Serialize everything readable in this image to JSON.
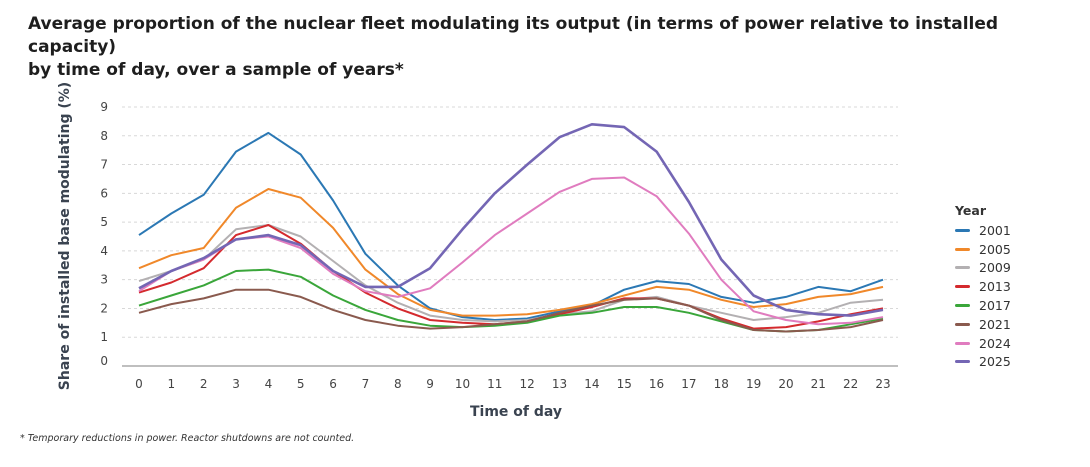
{
  "title_line1": "Average proportion of the nuclear fleet modulating its output (in terms of power relative to installed capacity)",
  "title_line2": "by time of day, over a sample of years*",
  "footnote": "* Temporary reductions in power. Reactor shutdowns are not counted.",
  "chart_data": {
    "type": "line",
    "xlabel": "Time of day",
    "ylabel": "Share of installed base modulating (%)",
    "x": [
      0,
      1,
      2,
      3,
      4,
      5,
      6,
      7,
      8,
      9,
      10,
      11,
      12,
      13,
      14,
      15,
      16,
      17,
      18,
      19,
      20,
      21,
      22,
      23
    ],
    "yticks": [
      0,
      1,
      2,
      3,
      4,
      5,
      6,
      7,
      8,
      9
    ],
    "ylim": [
      0,
      9
    ],
    "grid": true,
    "legend_title": "Year",
    "legend_position": "right",
    "series": [
      {
        "name": "2001",
        "color": "#2b78b4",
        "values": [
          4.55,
          5.3,
          5.95,
          7.45,
          8.1,
          7.35,
          5.75,
          3.9,
          2.8,
          2.0,
          1.7,
          1.6,
          1.65,
          1.9,
          2.1,
          2.65,
          2.95,
          2.85,
          2.4,
          2.2,
          2.4,
          2.75,
          2.6,
          3.0
        ]
      },
      {
        "name": "2005",
        "color": "#f0882a",
        "values": [
          3.4,
          3.85,
          4.1,
          5.5,
          6.15,
          5.85,
          4.8,
          3.35,
          2.5,
          1.95,
          1.75,
          1.75,
          1.8,
          1.95,
          2.15,
          2.45,
          2.75,
          2.65,
          2.3,
          2.05,
          2.15,
          2.4,
          2.5,
          2.75
        ]
      },
      {
        "name": "2009",
        "color": "#b3b0b2",
        "values": [
          2.95,
          3.3,
          3.7,
          4.75,
          4.9,
          4.5,
          3.65,
          2.8,
          2.2,
          1.75,
          1.6,
          1.55,
          1.6,
          1.8,
          1.9,
          2.3,
          2.4,
          2.1,
          1.85,
          1.6,
          1.7,
          1.85,
          2.2,
          2.3
        ]
      },
      {
        "name": "2013",
        "color": "#d42a2e",
        "values": [
          2.55,
          2.9,
          3.4,
          4.55,
          4.9,
          4.25,
          3.3,
          2.55,
          2.0,
          1.6,
          1.5,
          1.45,
          1.55,
          1.8,
          2.05,
          2.35,
          2.35,
          2.1,
          1.65,
          1.3,
          1.35,
          1.55,
          1.8,
          2.0
        ]
      },
      {
        "name": "2017",
        "color": "#3aa63a",
        "values": [
          2.1,
          2.45,
          2.8,
          3.3,
          3.35,
          3.1,
          2.45,
          1.95,
          1.6,
          1.4,
          1.35,
          1.4,
          1.5,
          1.75,
          1.85,
          2.05,
          2.05,
          1.85,
          1.55,
          1.25,
          1.2,
          1.25,
          1.45,
          1.65
        ]
      },
      {
        "name": "2021",
        "color": "#8a5a4e",
        "values": [
          1.85,
          2.15,
          2.35,
          2.65,
          2.65,
          2.4,
          1.95,
          1.6,
          1.4,
          1.3,
          1.35,
          1.45,
          1.55,
          1.85,
          2.1,
          2.3,
          2.35,
          2.1,
          1.6,
          1.25,
          1.2,
          1.25,
          1.35,
          1.6
        ]
      },
      {
        "name": "2024",
        "color": "#e07cbf",
        "values": [
          2.6,
          3.3,
          3.7,
          4.4,
          4.5,
          4.1,
          3.2,
          2.6,
          2.4,
          2.7,
          3.6,
          4.55,
          5.3,
          6.05,
          6.5,
          6.55,
          5.9,
          4.6,
          3.0,
          1.9,
          1.6,
          1.45,
          1.5,
          1.7
        ]
      },
      {
        "name": "2025",
        "color": "#7466b4",
        "values": [
          2.7,
          3.3,
          3.75,
          4.4,
          4.55,
          4.2,
          3.3,
          2.75,
          2.75,
          3.4,
          4.75,
          6.0,
          7.0,
          7.95,
          8.4,
          8.3,
          7.45,
          5.7,
          3.7,
          2.45,
          1.95,
          1.8,
          1.75,
          1.95
        ]
      }
    ]
  }
}
